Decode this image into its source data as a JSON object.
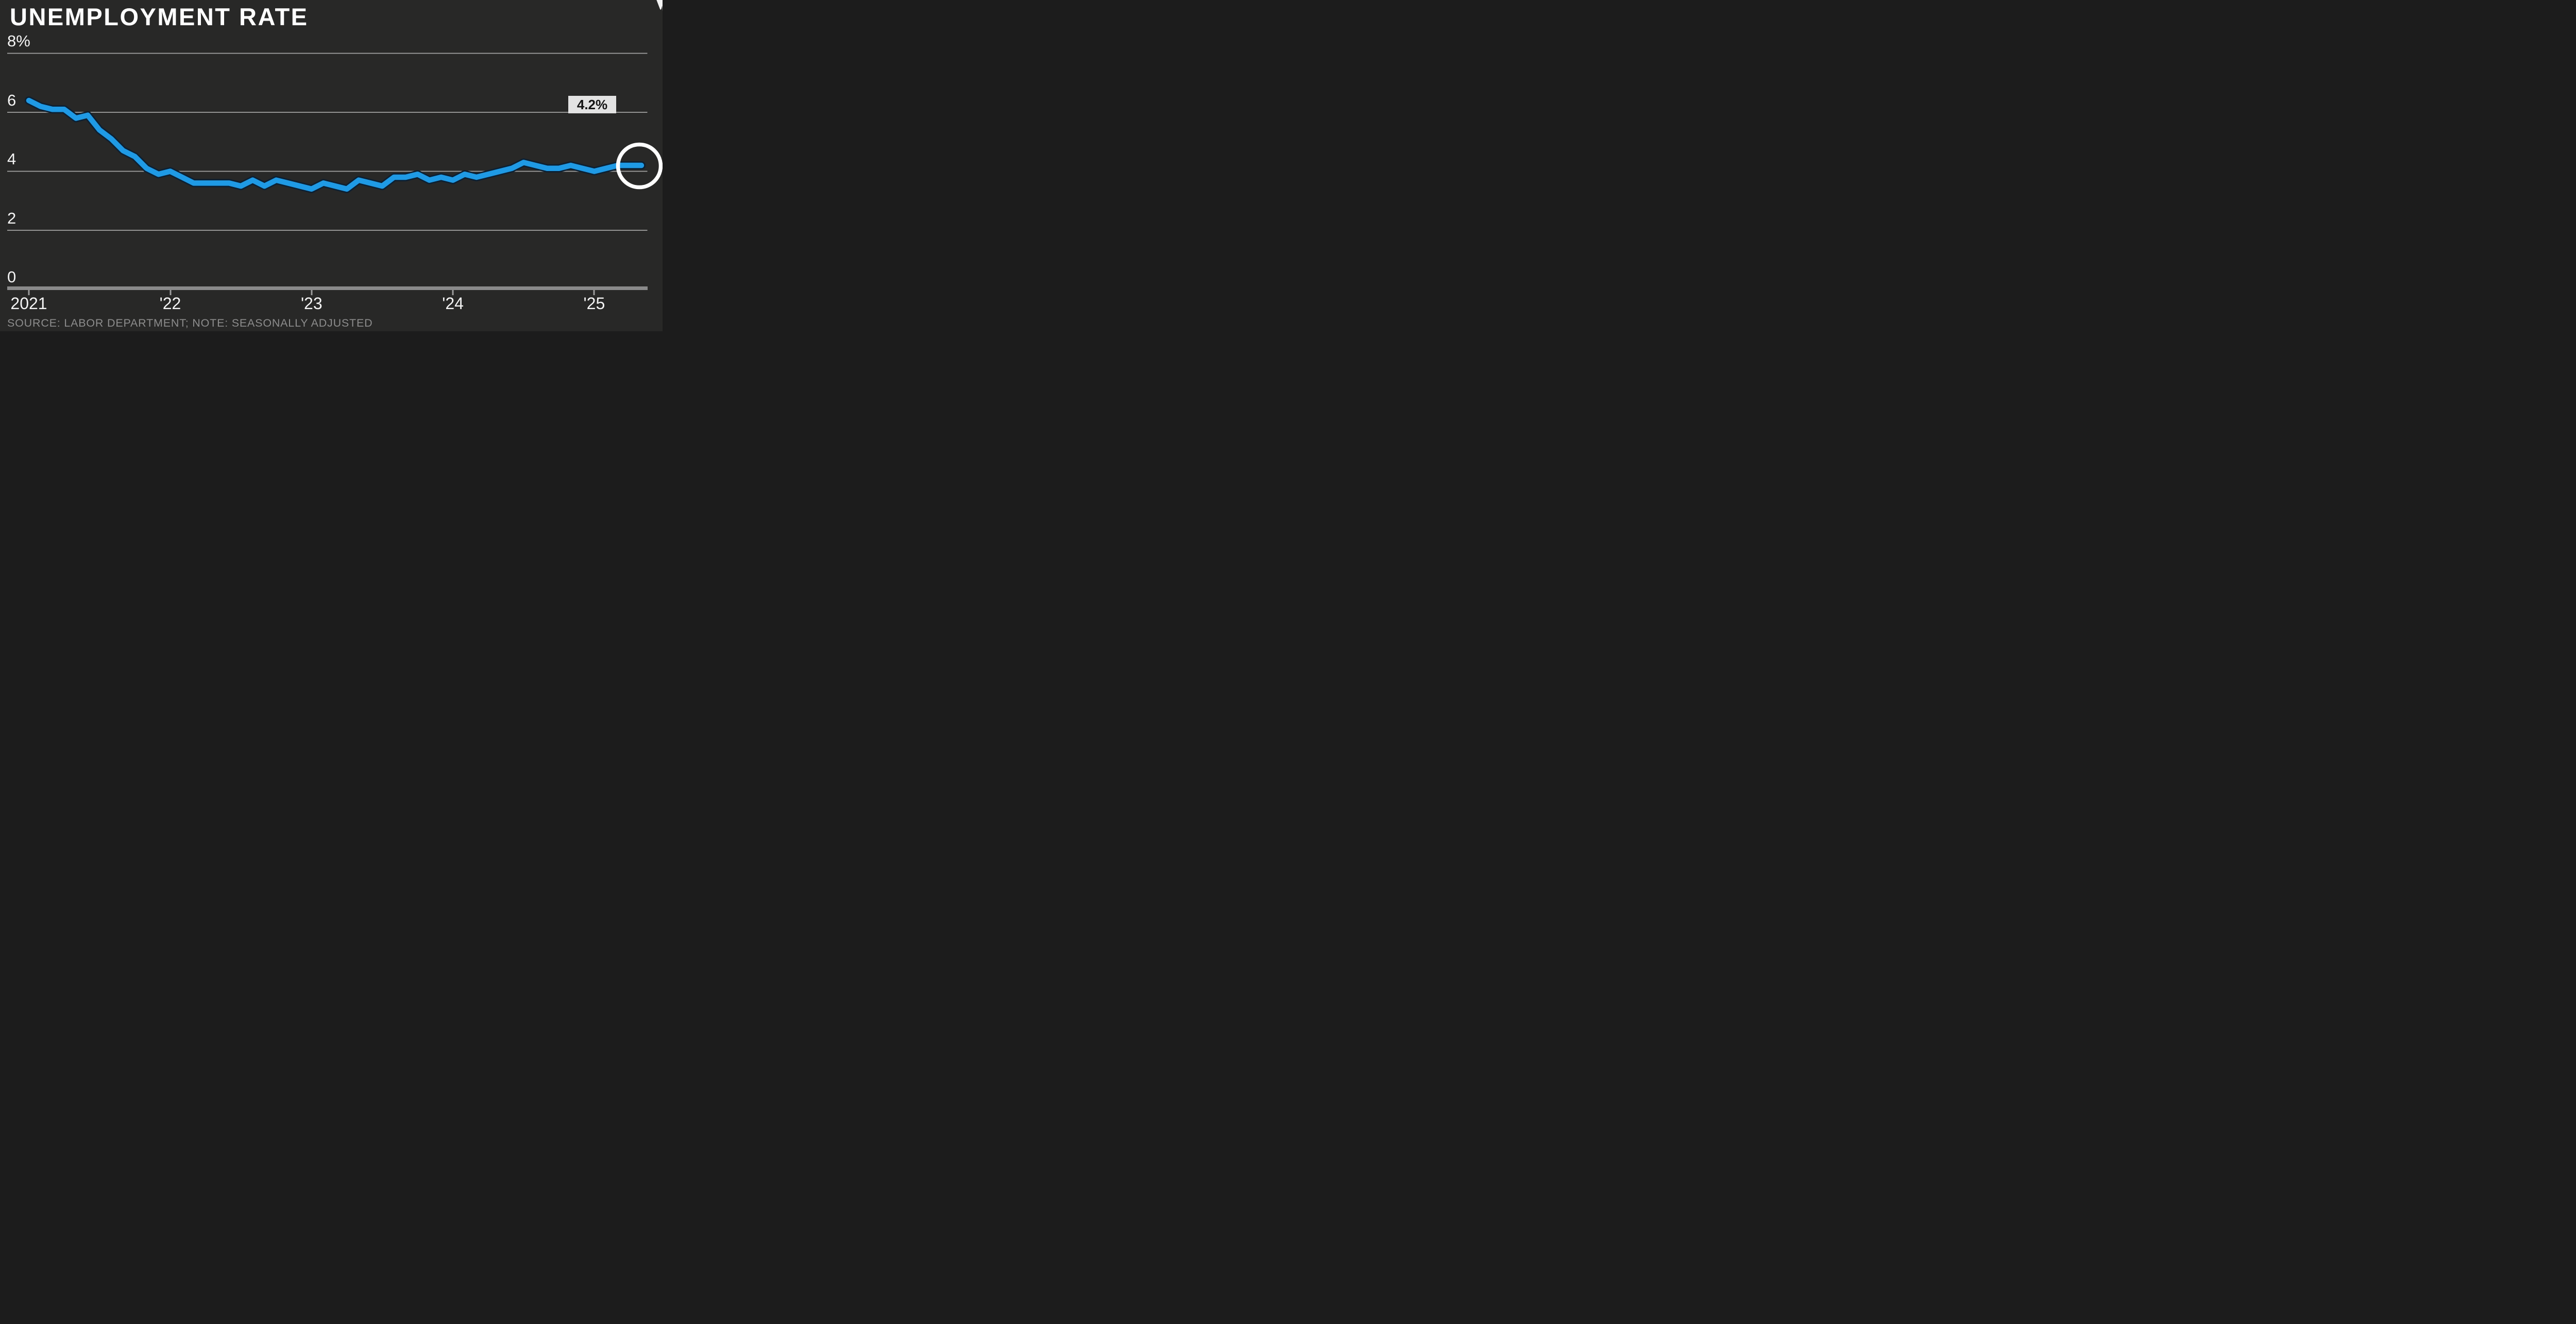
{
  "title": "UNEMPLOYMENT RATE",
  "source_note": "SOURCE: LABOR DEPARTMENT; NOTE: SEASONALLY ADJUSTED",
  "annotation": {
    "label": "4.2%"
  },
  "y_axis": {
    "labels": [
      "8%",
      "6",
      "4",
      "2",
      "0"
    ],
    "values": [
      8,
      6,
      4,
      2,
      0
    ]
  },
  "x_axis": {
    "labels": [
      "2021",
      "'22",
      "'23",
      "'24",
      "'25"
    ],
    "tick_month_offsets": [
      0,
      12,
      24,
      36,
      48
    ]
  },
  "chart_data": {
    "type": "line",
    "series_name": "Unemployment rate",
    "unit": "percent",
    "frequency": "monthly",
    "start_month": "2021-01",
    "end_month": "2025-05",
    "ylim": [
      0,
      8
    ],
    "grid": "horizontal",
    "values": [
      6.4,
      6.2,
      6.1,
      6.1,
      5.8,
      5.9,
      5.4,
      5.1,
      4.7,
      4.5,
      4.1,
      3.9,
      4.0,
      3.8,
      3.6,
      3.6,
      3.6,
      3.6,
      3.5,
      3.7,
      3.5,
      3.7,
      3.6,
      3.5,
      3.4,
      3.6,
      3.5,
      3.4,
      3.7,
      3.6,
      3.5,
      3.8,
      3.8,
      3.9,
      3.7,
      3.8,
      3.7,
      3.9,
      3.8,
      3.9,
      4.0,
      4.1,
      4.3,
      4.2,
      4.1,
      4.1,
      4.2,
      4.1,
      4.0,
      4.1,
      4.2,
      4.2,
      4.2
    ],
    "last_point": {
      "value": 4.2,
      "label": "4.2%",
      "highlighted": true
    }
  },
  "colors": {
    "background": "#282827",
    "line": "#1f9ae5",
    "line_outline": "#0c2033",
    "gridline": "#a3a3a3",
    "axis_bar": "#8a8a8a",
    "tick": "#9c9c9c",
    "label_text": "#f4f4f4",
    "title_text": "#ffffff",
    "source_text": "#8d8d8d",
    "annotation_bg": "#e3e3e3",
    "annotation_text": "#141414",
    "highlight_ring": "#ffffff"
  }
}
